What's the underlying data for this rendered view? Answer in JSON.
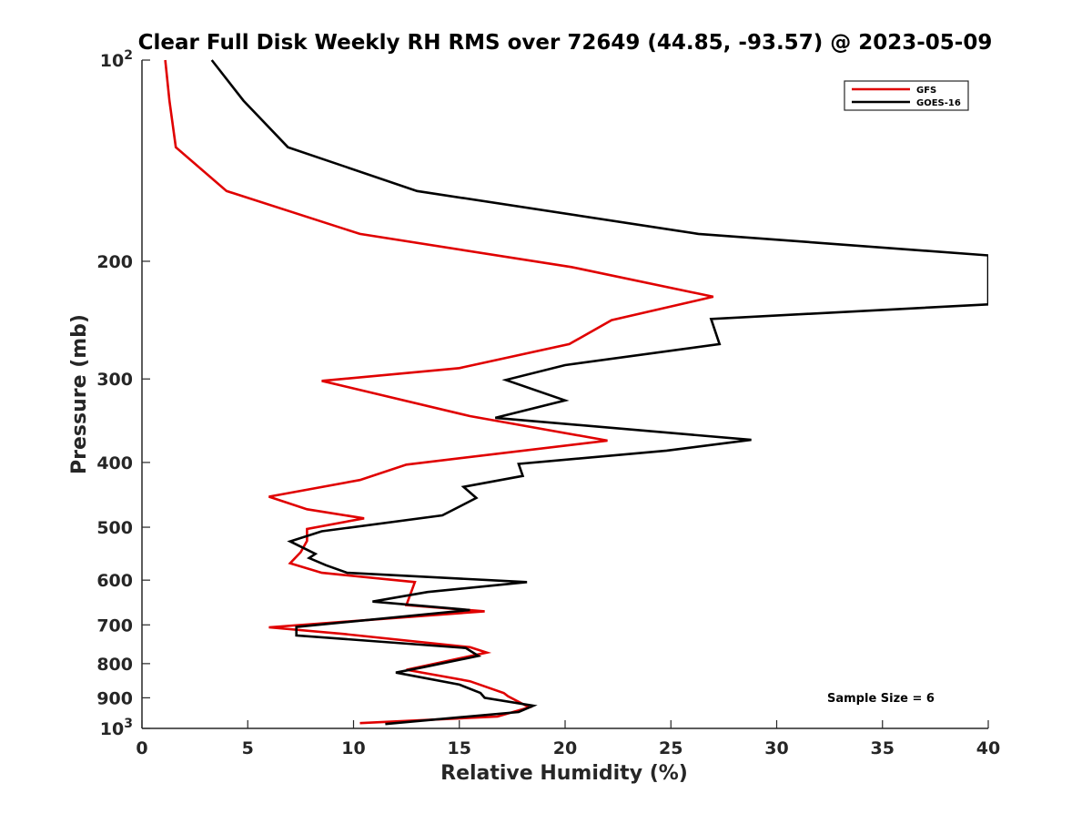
{
  "chart_data": {
    "type": "line",
    "title": "Clear Full Disk Weekly RH RMS over 72649 (44.85, -93.57) @ 2023-05-09",
    "xlabel": "Relative Humidity (%)",
    "ylabel": "Pressure (mb)",
    "xlim": [
      0,
      40
    ],
    "ylim": [
      100,
      1000
    ],
    "yscale": "log",
    "y_reversed": true,
    "x_ticks": [
      "0",
      "5",
      "10",
      "15",
      "20",
      "25",
      "30",
      "35",
      "40"
    ],
    "y_ticks": [
      {
        "value": 100,
        "base": "10",
        "exp": "2"
      },
      {
        "value": 200,
        "label": "200"
      },
      {
        "value": 300,
        "label": "300"
      },
      {
        "value": 400,
        "label": "400"
      },
      {
        "value": 500,
        "label": "500"
      },
      {
        "value": 600,
        "label": "600"
      },
      {
        "value": 700,
        "label": "700"
      },
      {
        "value": 800,
        "label": "800"
      },
      {
        "value": 900,
        "label": "900"
      },
      {
        "value": 1000,
        "base": "10",
        "exp": "3"
      }
    ],
    "legend_position": "top-right",
    "annotation": "Sample Size = 6",
    "series": [
      {
        "name": "GFS",
        "color": "#e00000",
        "points": [
          [
            1.1,
            100
          ],
          [
            1.3,
            115
          ],
          [
            1.6,
            135
          ],
          [
            4.0,
            157
          ],
          [
            10.3,
            182
          ],
          [
            20.3,
            204
          ],
          [
            27.0,
            226
          ],
          [
            22.2,
            245
          ],
          [
            20.2,
            266
          ],
          [
            15.0,
            289
          ],
          [
            8.5,
            302
          ],
          [
            15.5,
            341
          ],
          [
            22.0,
            371
          ],
          [
            12.5,
            403
          ],
          [
            10.3,
            425
          ],
          [
            6.0,
            450
          ],
          [
            7.8,
            470
          ],
          [
            10.5,
            485
          ],
          [
            7.8,
            503
          ],
          [
            7.8,
            524
          ],
          [
            7.5,
            545
          ],
          [
            7.0,
            566
          ],
          [
            8.5,
            585
          ],
          [
            12.9,
            604
          ],
          [
            12.5,
            654
          ],
          [
            16.2,
            668
          ],
          [
            6.0,
            706
          ],
          [
            9.5,
            722
          ],
          [
            15.5,
            756
          ],
          [
            16.3,
            770
          ],
          [
            12.5,
            817
          ],
          [
            15.5,
            850
          ],
          [
            17.1,
            885
          ],
          [
            17.3,
            895
          ],
          [
            18.3,
            930
          ],
          [
            16.8,
            960
          ],
          [
            10.3,
            982
          ]
        ]
      },
      {
        "name": "GOES-16",
        "color": "#000000",
        "points": [
          [
            3.3,
            100
          ],
          [
            4.8,
            115
          ],
          [
            6.9,
            135
          ],
          [
            13.0,
            157
          ],
          [
            26.3,
            182
          ],
          [
            40.0,
            196
          ],
          [
            40.0,
            232
          ],
          [
            26.9,
            244
          ],
          [
            27.3,
            266
          ],
          [
            20.0,
            286
          ],
          [
            17.2,
            301
          ],
          [
            20.0,
            323
          ],
          [
            16.7,
            343
          ],
          [
            28.8,
            370
          ],
          [
            24.8,
            384
          ],
          [
            17.8,
            402
          ],
          [
            18.0,
            419
          ],
          [
            15.2,
            435
          ],
          [
            15.8,
            452
          ],
          [
            14.2,
            480
          ],
          [
            8.5,
            507
          ],
          [
            7.0,
            525
          ],
          [
            8.2,
            548
          ],
          [
            7.9,
            556
          ],
          [
            8.7,
            570
          ],
          [
            9.7,
            585
          ],
          [
            18.2,
            604
          ],
          [
            13.5,
            625
          ],
          [
            10.9,
            646
          ],
          [
            15.5,
            665
          ],
          [
            7.3,
            705
          ],
          [
            7.3,
            726
          ],
          [
            15.3,
            758
          ],
          [
            15.9,
            779
          ],
          [
            13.3,
            810
          ],
          [
            12.0,
            825
          ],
          [
            15.0,
            860
          ],
          [
            16.0,
            885
          ],
          [
            16.2,
            900
          ],
          [
            18.5,
            925
          ],
          [
            17.8,
            945
          ],
          [
            11.5,
            985
          ]
        ]
      }
    ]
  }
}
